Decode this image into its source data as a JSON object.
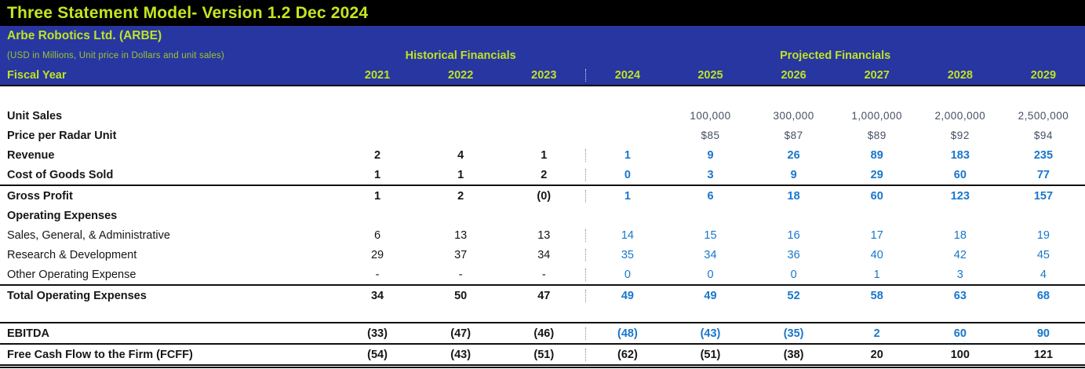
{
  "title": "Three Statement Model- Version 1.2 Dec 2024",
  "header": {
    "company": "Arbe Robotics Ltd. (ARBE)",
    "subtitle": "(USD in Millions, Unit price in Dollars and unit sales)",
    "historical_label": "Historical Financials",
    "projected_label": "Projected Financials",
    "fiscal_year_label": "Fiscal Year"
  },
  "colors": {
    "accent_green": "#bfe422",
    "band_blue": "#2836a2",
    "projected_blue": "#1976cc",
    "unit_row_slate": "#454f63",
    "titlebar_black": "#000000"
  },
  "table": {
    "years": [
      "2021",
      "2022",
      "2023",
      "2024",
      "2025",
      "2026",
      "2027",
      "2028",
      "2029"
    ],
    "rows": [
      {
        "label": "",
        "spacer": true,
        "bold": false,
        "value_bold": false,
        "hist": [
          "",
          "",
          ""
        ],
        "proj": [
          "",
          "",
          "",
          "",
          "",
          ""
        ],
        "hist_color": "blk",
        "proj_color": "blk",
        "border": "none"
      },
      {
        "label": "Unit Sales",
        "bold": true,
        "value_bold": false,
        "hist": [
          "",
          "",
          ""
        ],
        "proj": [
          "",
          "100,000",
          "300,000",
          "1,000,000",
          "2,000,000",
          "2,500,000"
        ],
        "hist_color": "slate",
        "proj_color": "slate",
        "border": "none"
      },
      {
        "label": "Price per Radar Unit",
        "bold": true,
        "value_bold": false,
        "hist": [
          "",
          "",
          ""
        ],
        "proj": [
          "",
          "$85",
          "$87",
          "$89",
          "$92",
          "$94"
        ],
        "hist_color": "slate",
        "proj_color": "slate",
        "border": "none"
      },
      {
        "label": "Revenue",
        "bold": true,
        "value_bold": true,
        "hist": [
          "2",
          "4",
          "1"
        ],
        "proj": [
          "1",
          "9",
          "26",
          "89",
          "183",
          "235"
        ],
        "hist_color": "blk",
        "proj_color": "blue",
        "border": "none"
      },
      {
        "label": "Cost of Goods Sold",
        "bold": true,
        "value_bold": true,
        "hist": [
          "1",
          "1",
          "2"
        ],
        "proj": [
          "0",
          "3",
          "9",
          "29",
          "60",
          "77"
        ],
        "hist_color": "blk",
        "proj_color": "blue",
        "border": "bottom"
      },
      {
        "label": "Gross Profit",
        "bold": true,
        "value_bold": true,
        "hist": [
          "1",
          "2",
          "(0)"
        ],
        "proj": [
          "1",
          "6",
          "18",
          "60",
          "123",
          "157"
        ],
        "hist_color": "blk",
        "proj_color": "blue",
        "border": "none"
      },
      {
        "label": "Operating Expenses",
        "bold": true,
        "value_bold": false,
        "hist": [
          "",
          "",
          ""
        ],
        "proj": [
          "",
          "",
          "",
          "",
          "",
          ""
        ],
        "hist_color": "blk",
        "proj_color": "blue",
        "border": "none"
      },
      {
        "label": "Sales, General, & Administrative",
        "bold": false,
        "value_bold": false,
        "hist": [
          "6",
          "13",
          "13"
        ],
        "proj": [
          "14",
          "15",
          "16",
          "17",
          "18",
          "19"
        ],
        "hist_color": "blk",
        "proj_color": "blue",
        "border": "none"
      },
      {
        "label": "Research & Development",
        "bold": false,
        "value_bold": false,
        "hist": [
          "29",
          "37",
          "34"
        ],
        "proj": [
          "35",
          "34",
          "36",
          "40",
          "42",
          "45"
        ],
        "hist_color": "blk",
        "proj_color": "blue",
        "border": "none"
      },
      {
        "label": "Other Operating Expense",
        "bold": false,
        "value_bold": false,
        "hist": [
          "-",
          "-",
          "-"
        ],
        "proj": [
          "0",
          "0",
          "0",
          "1",
          "3",
          "4"
        ],
        "hist_color": "blk",
        "proj_color": "blue",
        "border": "bottom"
      },
      {
        "label": "Total Operating Expenses",
        "bold": true,
        "value_bold": true,
        "hist": [
          "34",
          "50",
          "47"
        ],
        "proj": [
          "49",
          "49",
          "52",
          "58",
          "63",
          "68"
        ],
        "hist_color": "blk",
        "proj_color": "blue",
        "border": "none"
      },
      {
        "label": "",
        "spacer": true,
        "small": true,
        "bold": false,
        "value_bold": false,
        "hist": [
          "",
          "",
          ""
        ],
        "proj": [
          "",
          "",
          "",
          "",
          "",
          ""
        ],
        "hist_color": "blk",
        "proj_color": "blk",
        "border": "bottom"
      },
      {
        "label": "EBITDA",
        "bold": true,
        "value_bold": true,
        "hist": [
          "(33)",
          "(47)",
          "(46)"
        ],
        "proj": [
          "(48)",
          "(43)",
          "(35)",
          "2",
          "60",
          "90"
        ],
        "hist_color": "blk",
        "proj_color": "blue",
        "border": "bottom"
      },
      {
        "label": "Free Cash Flow to the Firm (FCFF)",
        "bold": true,
        "value_bold": true,
        "hist": [
          "(54)",
          "(43)",
          "(51)"
        ],
        "proj": [
          "(62)",
          "(51)",
          "(38)",
          "20",
          "100",
          "121"
        ],
        "hist_color": "blk",
        "proj_color": "blk",
        "border": "double"
      }
    ]
  }
}
